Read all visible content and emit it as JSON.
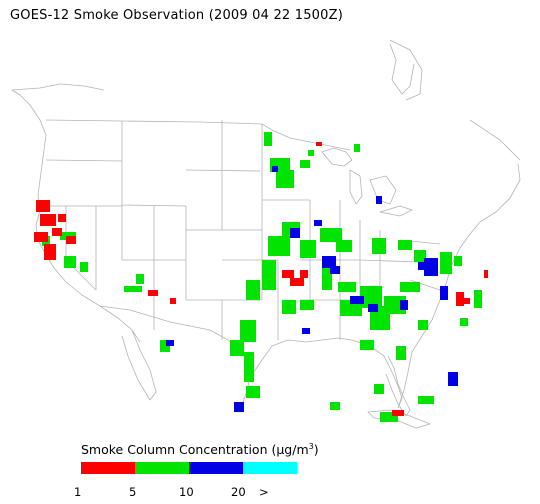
{
  "title": "GOES-12 Smoke Observation (2009 04 22  1500Z)",
  "legend": {
    "title_prefix": "Smoke Column Concentration (",
    "unit": "µg/m",
    "unit_exp": "3",
    "title_suffix": ")",
    "colors": [
      "#ff0000",
      "#00e400",
      "#0000e4",
      "#00ffff"
    ],
    "ticks": [
      "1",
      "5",
      "10",
      "20",
      ">"
    ]
  },
  "map": {
    "base_outline_color": "#b0b0b0",
    "smoke_levels": [
      "1-5",
      "5-10",
      "10-20",
      ">20"
    ]
  }
}
